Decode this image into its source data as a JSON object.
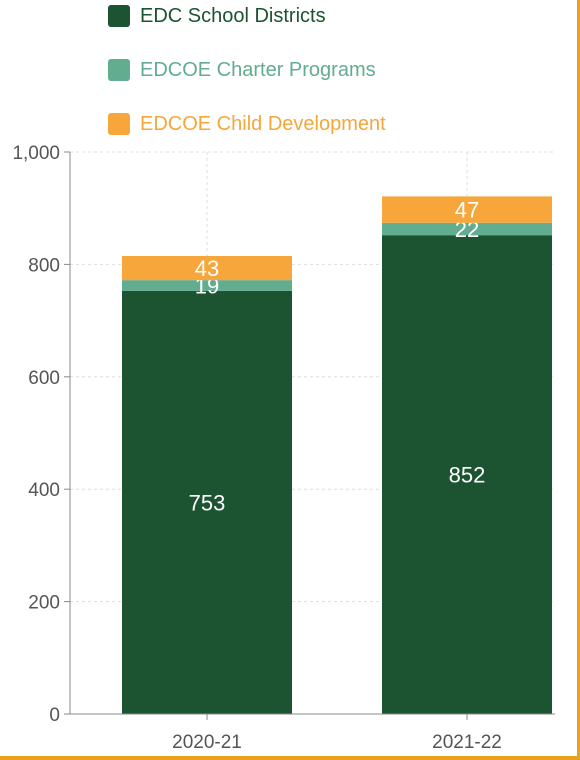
{
  "chart_data": {
    "type": "bar",
    "stacked": true,
    "categories": [
      "2020-21",
      "2021-22"
    ],
    "series": [
      {
        "name": "EDC School Districts",
        "values": [
          753,
          852
        ],
        "color": "#1c5330"
      },
      {
        "name": "EDCOE Charter Programs",
        "values": [
          19,
          22
        ],
        "color": "#62ad8f"
      },
      {
        "name": "EDCOE Child Development",
        "values": [
          43,
          47
        ],
        "color": "#f6a63a"
      }
    ],
    "legend_text_colors": [
      "#1c5330",
      "#62ad8f",
      "#f6a63a"
    ],
    "data_label_color": "#ffffff",
    "ylim": [
      0,
      1000
    ],
    "yticks": [
      0,
      200,
      400,
      600,
      800,
      1000
    ],
    "ytick_labels": [
      "0",
      "200",
      "400",
      "600",
      "800",
      "1,000"
    ],
    "grid": true,
    "legend_position": "top-left"
  }
}
